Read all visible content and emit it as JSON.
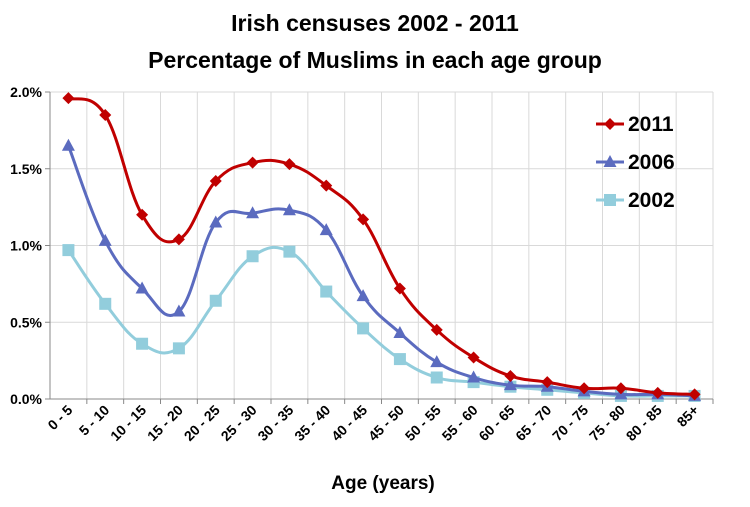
{
  "chart_data": {
    "type": "line",
    "title": "Irish censuses 2002 - 2011",
    "subtitle": "Percentage of Muslims in each age group",
    "xlabel": "Age (years)",
    "ylabel": "",
    "ylim": [
      0,
      2.0
    ],
    "yticks": [
      "0.0%",
      "0.5%",
      "1.0%",
      "1.5%",
      "2.0%"
    ],
    "grid": true,
    "legend_position": "top-right",
    "categories": [
      "0 - 5",
      "5 - 10",
      "10 - 15",
      "15 - 20",
      "20 - 25",
      "25 - 30",
      "30 - 35",
      "35 - 40",
      "40 - 45",
      "45 - 50",
      "50 - 55",
      "55 - 60",
      "60 - 65",
      "65 - 70",
      "70 - 75",
      "75 - 80",
      "80 - 85",
      "85+"
    ],
    "series": [
      {
        "name": "2011",
        "color": "#C00000",
        "marker": "diamond",
        "values": [
          1.96,
          1.85,
          1.2,
          1.04,
          1.42,
          1.54,
          1.53,
          1.39,
          1.17,
          0.72,
          0.45,
          0.27,
          0.15,
          0.11,
          0.07,
          0.07,
          0.04,
          0.03
        ]
      },
      {
        "name": "2006",
        "color": "#5B6BBF",
        "marker": "triangle",
        "values": [
          1.65,
          1.03,
          0.72,
          0.57,
          1.15,
          1.21,
          1.23,
          1.1,
          0.67,
          0.43,
          0.24,
          0.14,
          0.09,
          0.08,
          0.05,
          0.03,
          0.03,
          0.02
        ]
      },
      {
        "name": "2002",
        "color": "#92CDDC",
        "marker": "square",
        "values": [
          0.97,
          0.62,
          0.36,
          0.33,
          0.64,
          0.93,
          0.96,
          0.7,
          0.46,
          0.26,
          0.14,
          0.11,
          0.08,
          0.06,
          0.04,
          0.02,
          0.02,
          0.02
        ]
      }
    ]
  }
}
